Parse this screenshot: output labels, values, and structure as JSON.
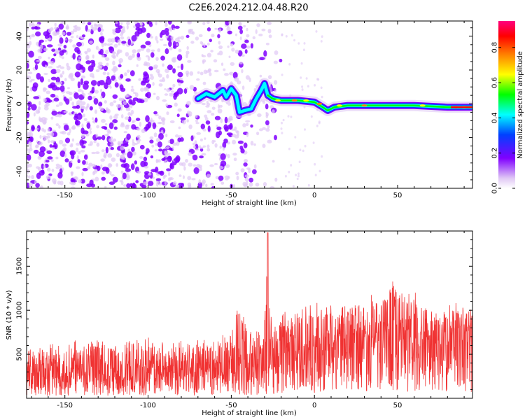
{
  "figure": {
    "title": "C2E6.2024.212.04.48.R20"
  },
  "chart_data": [
    {
      "type": "heatmap",
      "panel": "spectrogram",
      "xlabel": "Height of straight line (km)",
      "ylabel": "Frequency (Hz)",
      "xlim": [
        -173,
        95
      ],
      "ylim": [
        -50,
        49
      ],
      "xticks": [
        -150,
        -100,
        -50,
        0,
        50
      ],
      "yticks": [
        -40,
        -20,
        0,
        20,
        40
      ],
      "ridge": [
        [
          -70,
          3
        ],
        [
          -65,
          6
        ],
        [
          -60,
          4
        ],
        [
          -55,
          8
        ],
        [
          -53,
          4
        ],
        [
          -50,
          9
        ],
        [
          -47,
          5
        ],
        [
          -45,
          -5
        ],
        [
          -42,
          -4
        ],
        [
          -38,
          -3
        ],
        [
          -35,
          3
        ],
        [
          -32,
          8
        ],
        [
          -30,
          12
        ],
        [
          -28,
          5
        ],
        [
          -25,
          3
        ],
        [
          -20,
          2
        ],
        [
          -10,
          2
        ],
        [
          0,
          1
        ],
        [
          5,
          -2
        ],
        [
          8,
          -4
        ],
        [
          12,
          -2
        ],
        [
          20,
          -1
        ],
        [
          40,
          -1
        ],
        [
          60,
          -1
        ],
        [
          80,
          -2
        ],
        [
          95,
          -2
        ]
      ],
      "noise_region_x": [
        -173,
        -20
      ],
      "colorbar": {
        "label": "Normalized spectral amplitude",
        "range": [
          0.0,
          0.95
        ],
        "ticks": [
          "0.0",
          "0.2",
          "0.4",
          "0.6",
          "0.8"
        ],
        "colormap": [
          "#ffffff",
          "#e0c8f5",
          "#8000ff",
          "#0040ff",
          "#00ffff",
          "#00ff00",
          "#ffff00",
          "#ff8000",
          "#ff0000",
          "#ff0080"
        ]
      }
    },
    {
      "type": "line",
      "panel": "snr",
      "xlabel": "Height of straight line (km)",
      "ylabel": "SNR (10 * v/v)",
      "xlim": [
        -173,
        95
      ],
      "ylim": [
        0,
        1900
      ],
      "xticks": [
        -150,
        -100,
        -50,
        0,
        50
      ],
      "yticks": [
        500,
        1000,
        1500
      ],
      "color": "#f03232",
      "envelope": [
        [
          -173,
          300,
          550
        ],
        [
          -150,
          300,
          650
        ],
        [
          -130,
          280,
          600
        ],
        [
          -100,
          300,
          650
        ],
        [
          -80,
          300,
          600
        ],
        [
          -60,
          280,
          650
        ],
        [
          -50,
          380,
          750
        ],
        [
          -45,
          420,
          1050
        ],
        [
          -40,
          350,
          750
        ],
        [
          -30,
          430,
          800
        ],
        [
          -28,
          480,
          1850
        ],
        [
          -25,
          430,
          800
        ],
        [
          -15,
          520,
          950
        ],
        [
          0,
          580,
          1000
        ],
        [
          20,
          650,
          1050
        ],
        [
          40,
          720,
          1100
        ],
        [
          47,
          800,
          1300
        ],
        [
          55,
          760,
          1150
        ],
        [
          70,
          700,
          1000
        ],
        [
          80,
          720,
          1000
        ],
        [
          95,
          720,
          1050
        ]
      ]
    }
  ]
}
